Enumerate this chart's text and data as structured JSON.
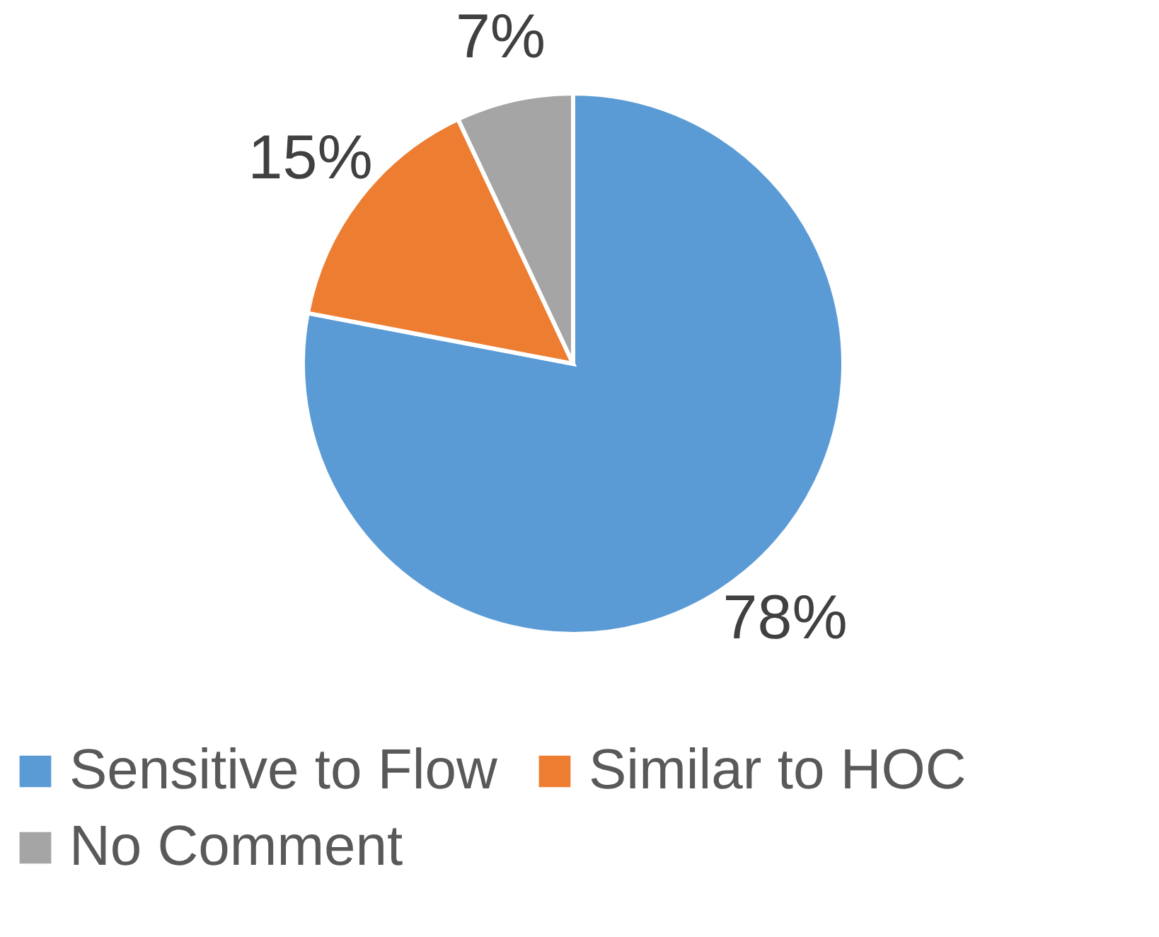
{
  "chart_data": {
    "type": "pie",
    "categories": [
      "Sensitive to Flow",
      "Similar to HOC",
      "No Comment"
    ],
    "values": [
      78,
      15,
      7
    ],
    "colors": [
      "#5b9bd5",
      "#ed7d31",
      "#a5a5a5"
    ],
    "value_labels": [
      "78%",
      "15%",
      "7%"
    ],
    "legend": "bottom"
  }
}
